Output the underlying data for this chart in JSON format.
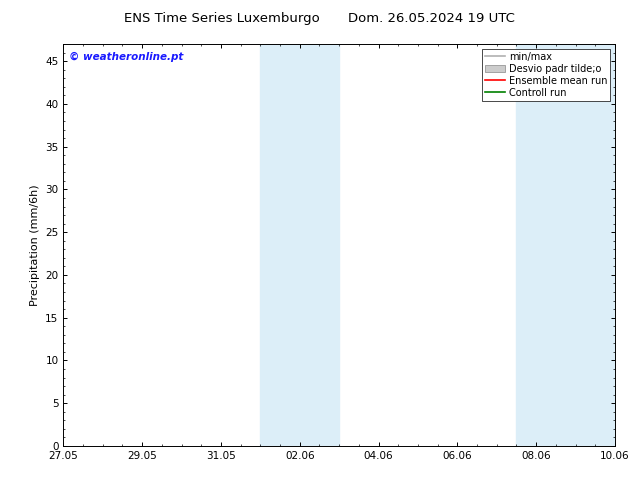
{
  "title_left": "ENS Time Series Luxemburgo",
  "title_right": "Dom. 26.05.2024 19 UTC",
  "ylabel": "Precipitation (mm/6h)",
  "watermark": "© weatheronline.pt",
  "ylim": [
    0,
    47
  ],
  "yticks": [
    0,
    5,
    10,
    15,
    20,
    25,
    30,
    35,
    40,
    45
  ],
  "xtick_labels": [
    "27.05",
    "29.05",
    "31.05",
    "02.06",
    "04.06",
    "06.06",
    "08.06",
    "10.06"
  ],
  "xtick_pos": [
    0,
    2,
    4,
    6,
    8,
    10,
    12,
    14
  ],
  "x_start": 0,
  "x_end": 14,
  "shade_bands": [
    {
      "start": 5.0,
      "end": 7.0
    },
    {
      "start": 11.5,
      "end": 14.0
    }
  ],
  "shade_color": "#dceef8",
  "background_color": "#ffffff",
  "legend_items": [
    {
      "label": "min/max",
      "color": "#b0b0b0",
      "type": "line"
    },
    {
      "label": "Desvio padr tilde;o",
      "color": "#cccccc",
      "type": "patch"
    },
    {
      "label": "Ensemble mean run",
      "color": "#ff0000",
      "type": "line"
    },
    {
      "label": "Controll run",
      "color": "#008000",
      "type": "line"
    }
  ],
  "title_fontsize": 9.5,
  "tick_fontsize": 7.5,
  "label_fontsize": 8,
  "legend_fontsize": 7,
  "watermark_color": "#1a1aff",
  "watermark_fontsize": 7.5
}
